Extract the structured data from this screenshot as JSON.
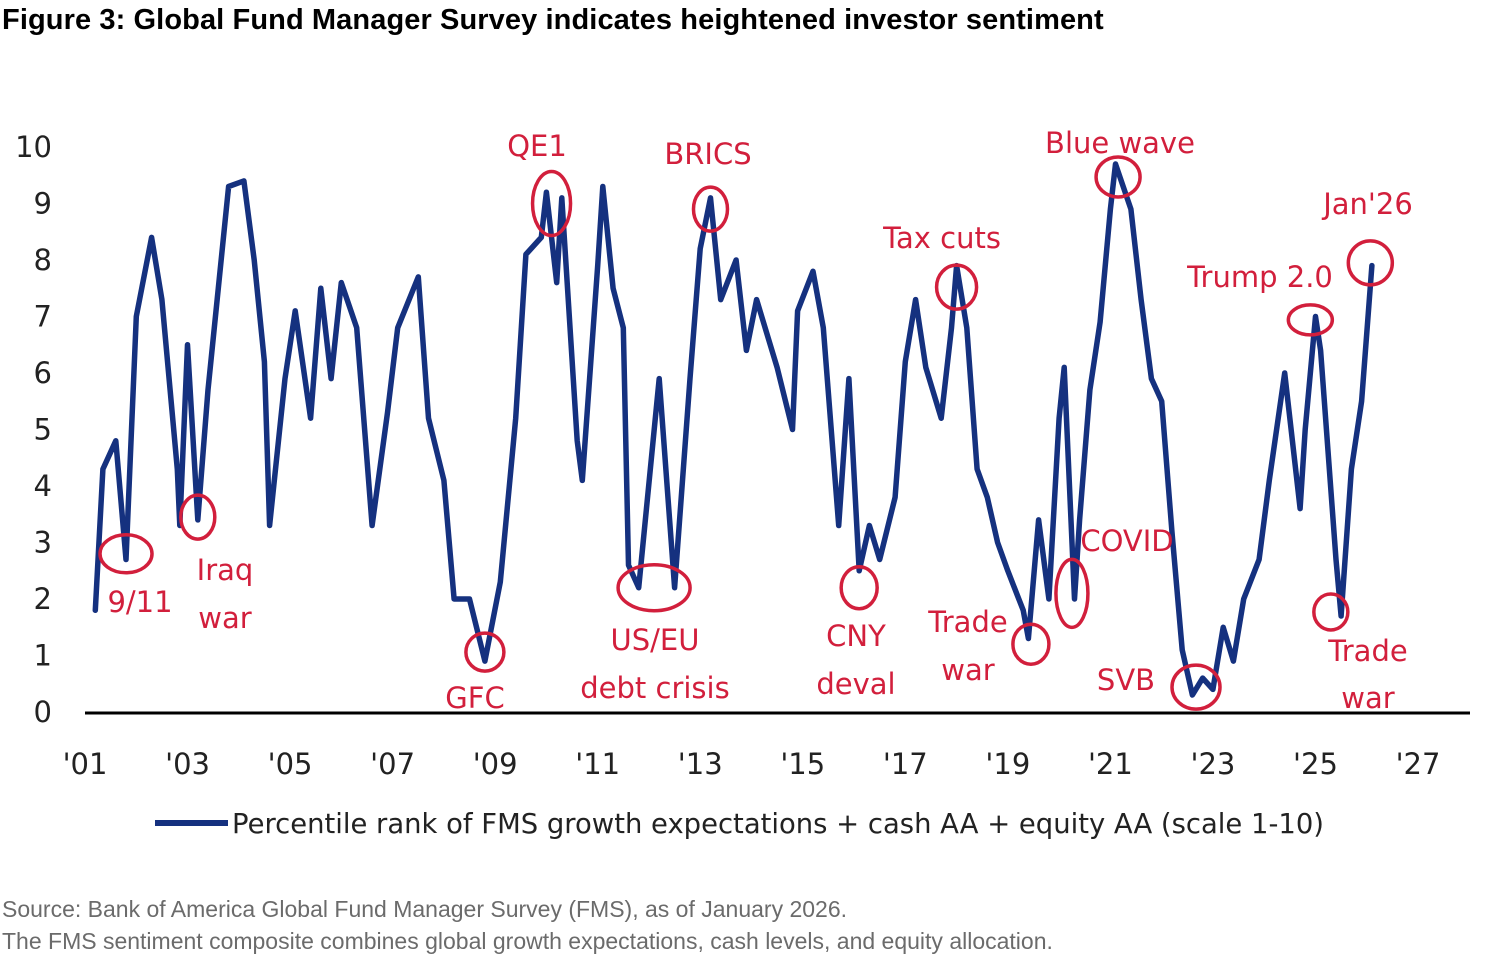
{
  "title": "Figure 3: Global Fund Manager Survey indicates heightened investor sentiment",
  "source_lines": [
    "Source: Bank of America Global Fund Manager Survey (FMS), as of January 2026.",
    "The FMS sentiment composite combines global growth expectations, cash levels, and equity allocation."
  ],
  "colors": {
    "line": "#15317f",
    "annotation": "#d21f3c",
    "axis": "#000000"
  },
  "chart_data": {
    "type": "line",
    "title": "Figure 3: Global Fund Manager Survey indicates heightened investor sentiment",
    "xlabel": "",
    "ylabel": "",
    "xlim": [
      2001,
      2027
    ],
    "ylim": [
      0,
      10
    ],
    "x_ticks": [
      2001,
      2003,
      2005,
      2007,
      2009,
      2011,
      2013,
      2015,
      2017,
      2019,
      2021,
      2023,
      2025,
      2027
    ],
    "x_tick_labels": [
      "'01",
      "'03",
      "'05",
      "'07",
      "'09",
      "'11",
      "'13",
      "'15",
      "'17",
      "'19",
      "'21",
      "'23",
      "'25",
      "'27"
    ],
    "y_ticks": [
      0,
      1,
      2,
      3,
      4,
      5,
      6,
      7,
      8,
      9,
      10
    ],
    "y_tick_labels": [
      "0",
      "1",
      "2",
      "3",
      "4",
      "5",
      "6",
      "7",
      "8",
      "9",
      "10"
    ],
    "grid": false,
    "legend_position": "bottom",
    "series": [
      {
        "name": "Percentile rank of FMS growth expectations + cash AA + equity AA (scale 1-10)",
        "points": [
          [
            2001.2,
            1.8
          ],
          [
            2001.35,
            4.3
          ],
          [
            2001.6,
            4.8
          ],
          [
            2001.8,
            2.7
          ],
          [
            2002.0,
            7.0
          ],
          [
            2002.3,
            8.4
          ],
          [
            2002.5,
            7.3
          ],
          [
            2002.8,
            4.3
          ],
          [
            2002.85,
            3.3
          ],
          [
            2003.0,
            6.5
          ],
          [
            2003.2,
            3.4
          ],
          [
            2003.4,
            5.7
          ],
          [
            2003.6,
            7.5
          ],
          [
            2003.8,
            9.3
          ],
          [
            2004.1,
            9.4
          ],
          [
            2004.3,
            8.0
          ],
          [
            2004.5,
            6.2
          ],
          [
            2004.6,
            3.3
          ],
          [
            2004.9,
            5.9
          ],
          [
            2005.1,
            7.1
          ],
          [
            2005.4,
            5.2
          ],
          [
            2005.6,
            7.5
          ],
          [
            2005.8,
            5.9
          ],
          [
            2006.0,
            7.6
          ],
          [
            2006.3,
            6.8
          ],
          [
            2006.6,
            3.3
          ],
          [
            2006.9,
            5.3
          ],
          [
            2007.1,
            6.8
          ],
          [
            2007.5,
            7.7
          ],
          [
            2007.7,
            5.2
          ],
          [
            2008.0,
            4.1
          ],
          [
            2008.2,
            2.0
          ],
          [
            2008.5,
            2.0
          ],
          [
            2008.8,
            0.9
          ],
          [
            2009.1,
            2.3
          ],
          [
            2009.4,
            5.2
          ],
          [
            2009.6,
            8.1
          ],
          [
            2009.9,
            8.4
          ],
          [
            2010.0,
            9.2
          ],
          [
            2010.2,
            7.6
          ],
          [
            2010.3,
            9.1
          ],
          [
            2010.6,
            4.8
          ],
          [
            2010.7,
            4.1
          ],
          [
            2011.0,
            7.9
          ],
          [
            2011.1,
            9.3
          ],
          [
            2011.3,
            7.5
          ],
          [
            2011.5,
            6.8
          ],
          [
            2011.6,
            2.6
          ],
          [
            2011.8,
            2.2
          ],
          [
            2012.2,
            5.9
          ],
          [
            2012.5,
            2.2
          ],
          [
            2012.8,
            5.9
          ],
          [
            2013.0,
            8.2
          ],
          [
            2013.2,
            9.1
          ],
          [
            2013.4,
            7.3
          ],
          [
            2013.7,
            8.0
          ],
          [
            2013.9,
            6.4
          ],
          [
            2014.1,
            7.3
          ],
          [
            2014.5,
            6.1
          ],
          [
            2014.8,
            5.0
          ],
          [
            2014.9,
            7.1
          ],
          [
            2015.2,
            7.8
          ],
          [
            2015.4,
            6.8
          ],
          [
            2015.7,
            3.3
          ],
          [
            2015.9,
            5.9
          ],
          [
            2016.1,
            2.5
          ],
          [
            2016.3,
            3.3
          ],
          [
            2016.5,
            2.7
          ],
          [
            2016.8,
            3.8
          ],
          [
            2017.0,
            6.2
          ],
          [
            2017.2,
            7.3
          ],
          [
            2017.4,
            6.1
          ],
          [
            2017.7,
            5.2
          ],
          [
            2017.9,
            6.8
          ],
          [
            2018.0,
            7.9
          ],
          [
            2018.2,
            6.8
          ],
          [
            2018.4,
            4.3
          ],
          [
            2018.6,
            3.8
          ],
          [
            2018.8,
            3.0
          ],
          [
            2019.0,
            2.5
          ],
          [
            2019.3,
            1.8
          ],
          [
            2019.4,
            1.3
          ],
          [
            2019.6,
            3.4
          ],
          [
            2019.8,
            2.0
          ],
          [
            2020.0,
            5.2
          ],
          [
            2020.1,
            6.1
          ],
          [
            2020.3,
            2.0
          ],
          [
            2020.4,
            3.4
          ],
          [
            2020.6,
            5.7
          ],
          [
            2020.8,
            6.9
          ],
          [
            2021.0,
            8.9
          ],
          [
            2021.1,
            9.7
          ],
          [
            2021.4,
            8.9
          ],
          [
            2021.6,
            7.3
          ],
          [
            2021.8,
            5.9
          ],
          [
            2022.0,
            5.5
          ],
          [
            2022.2,
            3.2
          ],
          [
            2022.4,
            1.1
          ],
          [
            2022.6,
            0.3
          ],
          [
            2022.8,
            0.6
          ],
          [
            2023.0,
            0.4
          ],
          [
            2023.2,
            1.5
          ],
          [
            2023.4,
            0.9
          ],
          [
            2023.6,
            2.0
          ],
          [
            2023.9,
            2.7
          ],
          [
            2024.1,
            4.1
          ],
          [
            2024.4,
            6.0
          ],
          [
            2024.7,
            3.6
          ],
          [
            2024.8,
            5.0
          ],
          [
            2025.0,
            7.0
          ],
          [
            2025.1,
            6.4
          ],
          [
            2025.4,
            2.7
          ],
          [
            2025.5,
            1.7
          ],
          [
            2025.7,
            4.3
          ],
          [
            2025.9,
            5.5
          ],
          [
            2026.1,
            7.9
          ]
        ]
      }
    ],
    "annotations": [
      {
        "lines": [
          "9/11"
        ],
        "x": 2001.8,
        "y": 2.8
      },
      {
        "lines": [
          "Iraq",
          "war"
        ],
        "x": 2003.2,
        "y": 3.45
      },
      {
        "lines": [
          "GFC"
        ],
        "x": 2008.8,
        "y": 1.06
      },
      {
        "lines": [
          "QE1"
        ],
        "x": 2010.1,
        "y": 9.0
      },
      {
        "lines": [
          "US/EU",
          "debt crisis"
        ],
        "x": 2012.1,
        "y": 2.2
      },
      {
        "lines": [
          "BRICS"
        ],
        "x": 2013.2,
        "y": 8.9
      },
      {
        "lines": [
          "CNY",
          "deval"
        ],
        "x": 2016.1,
        "y": 2.2
      },
      {
        "lines": [
          "Tax cuts"
        ],
        "x": 2018.0,
        "y": 7.52
      },
      {
        "lines": [
          "Trade",
          "war"
        ],
        "x": 2019.45,
        "y": 1.2
      },
      {
        "lines": [
          "COVID"
        ],
        "x": 2020.25,
        "y": 2.1
      },
      {
        "lines": [
          "Blue wave"
        ],
        "x": 2021.15,
        "y": 9.47
      },
      {
        "lines": [
          "SVB"
        ],
        "x": 2022.67,
        "y": 0.44
      },
      {
        "lines": [
          "Trump 2.0"
        ],
        "x": 2024.9,
        "y": 6.94
      },
      {
        "lines": [
          "Jan'26"
        ],
        "x": 2026.07,
        "y": 7.95
      },
      {
        "lines": [
          "Trade",
          "war"
        ],
        "x": 2025.3,
        "y": 1.77
      }
    ]
  }
}
